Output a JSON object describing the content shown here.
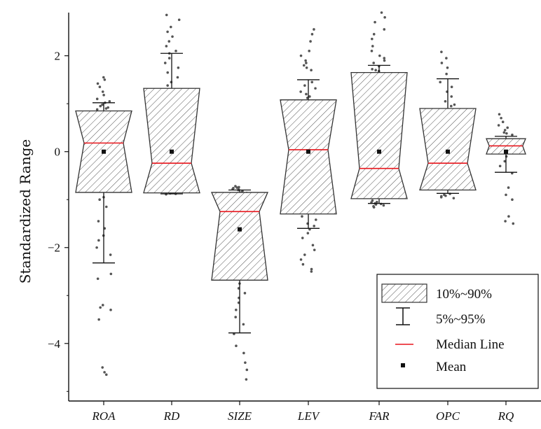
{
  "chart_data": {
    "type": "box",
    "ylabel": "Standardized Range",
    "xlabel": "",
    "ylim": [
      -5.2,
      2.9
    ],
    "yticks": [
      2,
      0,
      -2,
      -4
    ],
    "ytick_labels": [
      "2",
      "0",
      "−2",
      "−4"
    ],
    "grid": false,
    "legend_position": "bottom-right",
    "colors": {
      "median": "#e8141b",
      "box_edge": "#333333",
      "hatch": "#555555",
      "mean": "#111111",
      "points": "#555555"
    },
    "legend": [
      {
        "key": "box",
        "label": "10%~90%"
      },
      {
        "key": "whisker",
        "label": "5%~95%"
      },
      {
        "key": "median",
        "label": "Median Line"
      },
      {
        "key": "mean",
        "label": "Mean"
      }
    ],
    "categories": [
      "ROA",
      "RD",
      "SIZE",
      "LEV",
      "FAR",
      "OPC",
      "RQ"
    ],
    "boxes": [
      {
        "name": "ROA",
        "p10": -0.85,
        "p90": 0.85,
        "median": 0.18,
        "mean": 0.0,
        "p5": -2.32,
        "p95": 1.02,
        "notch_width": 0.3,
        "points": [
          1.55,
          1.5,
          1.42,
          1.35,
          1.25,
          1.18,
          1.1,
          1.05,
          1.02,
          0.98,
          0.95,
          0.92,
          0.9,
          0.88,
          -0.95,
          -1.0,
          -1.15,
          -1.45,
          -1.6,
          -1.75,
          -1.85,
          -2.0,
          -2.15,
          -2.55,
          -2.65,
          -3.2,
          -3.3,
          -3.5,
          -4.5,
          -4.6,
          -4.65,
          -3.25
        ]
      },
      {
        "name": "RD",
        "p10": -0.86,
        "p90": 1.32,
        "median": -0.24,
        "mean": 0.0,
        "p5": -0.88,
        "p95": 2.05,
        "notch_width": 0.3,
        "points": [
          2.85,
          2.75,
          2.6,
          2.5,
          2.4,
          2.3,
          2.2,
          2.1,
          2.05,
          1.95,
          1.85,
          1.75,
          1.65,
          1.55,
          1.45,
          1.38,
          -0.85,
          -0.87,
          -0.88,
          -0.86,
          -0.89
        ]
      },
      {
        "name": "SIZE",
        "p10": -2.68,
        "p90": -0.85,
        "median": -1.25,
        "mean": -1.62,
        "p5": -3.78,
        "p95": -0.8,
        "notch_width": 0.3,
        "points": [
          -0.72,
          -0.74,
          -0.76,
          -0.78,
          -0.8,
          -0.82,
          -0.84,
          -0.86,
          -0.75,
          -0.79,
          -2.75,
          -2.85,
          -2.95,
          -3.05,
          -3.15,
          -3.3,
          -3.45,
          -3.6,
          -3.8,
          -4.05,
          -4.2,
          -4.4,
          -4.55,
          -4.75
        ]
      },
      {
        "name": "LEV",
        "p10": -1.3,
        "p90": 1.08,
        "median": 0.04,
        "mean": 0.0,
        "p5": -1.6,
        "p95": 1.5,
        "notch_width": 0.3,
        "points": [
          2.55,
          2.45,
          2.3,
          2.1,
          2.0,
          1.9,
          1.85,
          1.8,
          1.75,
          1.7,
          1.45,
          1.38,
          1.32,
          1.25,
          1.2,
          1.15,
          1.12,
          -1.35,
          -1.42,
          -1.5,
          -1.55,
          -1.62,
          -1.7,
          -1.8,
          -1.95,
          -2.05,
          -2.15,
          -2.25,
          -2.35,
          -2.45,
          -2.5
        ]
      },
      {
        "name": "FAR",
        "p10": -0.98,
        "p90": 1.65,
        "median": -0.35,
        "mean": 0.0,
        "p5": -1.08,
        "p95": 1.8,
        "notch_width": 0.3,
        "points": [
          2.9,
          2.8,
          2.7,
          2.55,
          2.45,
          2.35,
          2.2,
          2.1,
          2.0,
          1.95,
          1.9,
          1.85,
          1.78,
          1.72,
          1.7,
          1.68,
          -1.02,
          -1.05,
          -1.08,
          -1.1,
          -1.12,
          -1.14,
          -1.16,
          -1.06,
          -1.09
        ]
      },
      {
        "name": "OPC",
        "p10": -0.8,
        "p90": 0.9,
        "median": -0.24,
        "mean": 0.0,
        "p5": -0.87,
        "p95": 1.52,
        "notch_width": 0.3,
        "points": [
          2.08,
          1.95,
          1.85,
          1.75,
          1.62,
          1.45,
          1.35,
          1.25,
          1.15,
          1.05,
          0.98,
          0.95,
          -0.88,
          -0.9,
          -0.92,
          -0.95,
          -0.97,
          -0.93
        ]
      },
      {
        "name": "RQ",
        "p10": -0.05,
        "p90": 0.27,
        "median": 0.12,
        "mean": 0.0,
        "p5": -0.43,
        "p95": 0.32,
        "notch_width": 0.15,
        "points": [
          0.78,
          0.7,
          0.62,
          0.55,
          0.5,
          0.45,
          0.4,
          0.38,
          0.35,
          -0.1,
          -0.2,
          -0.3,
          -0.45,
          -0.75,
          -0.9,
          -1.0,
          -1.35,
          -1.45,
          -1.5
        ]
      }
    ]
  }
}
